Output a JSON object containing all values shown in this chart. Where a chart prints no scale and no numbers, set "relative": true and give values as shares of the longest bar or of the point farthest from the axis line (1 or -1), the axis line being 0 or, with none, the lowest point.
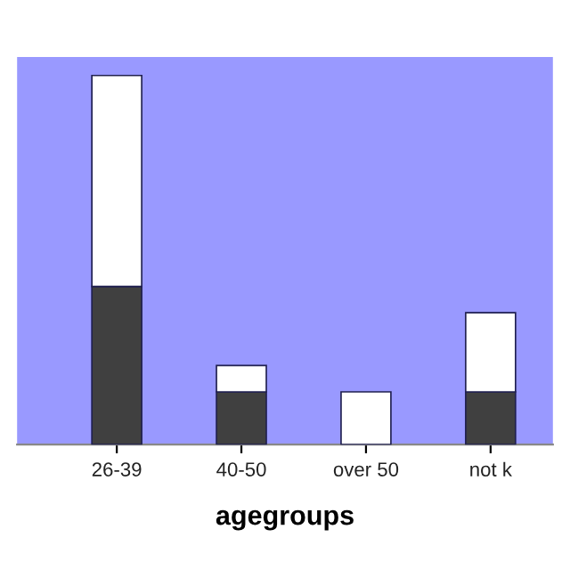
{
  "chart_data": {
    "type": "bar",
    "xlabel": "agegroups",
    "categories": [
      "26-39",
      "40-50",
      "over 50",
      "not k"
    ],
    "stacked": true,
    "relative": true,
    "legend": false,
    "series": [
      {
        "color": "#404040",
        "values": [
          0.4286,
          0.1429,
          0,
          0.1429
        ]
      },
      {
        "color": "#ffffff",
        "values": [
          0.5714,
          0.0714,
          0.1429,
          0.2143
        ]
      }
    ]
  }
}
